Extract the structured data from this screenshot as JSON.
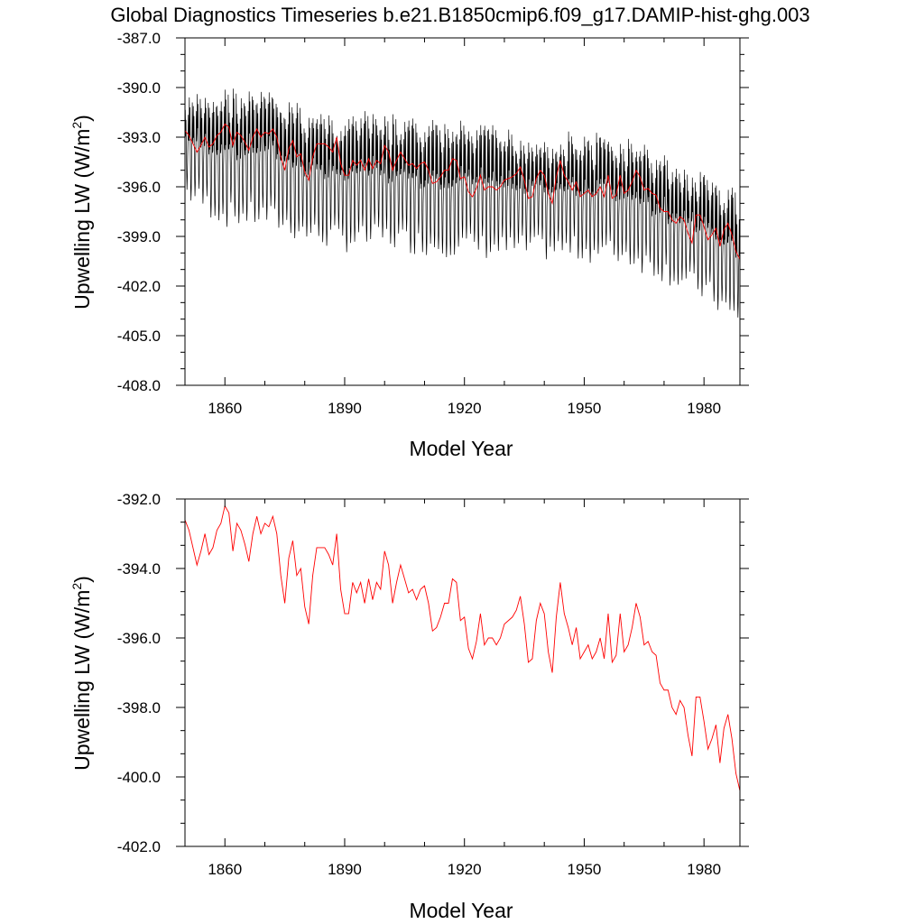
{
  "title": "Global Diagnostics Timeseries b.e21.B1850cmip6.f09_g17.DAMIP-hist-ghg.003",
  "colors": {
    "monthly_line": "#000000",
    "annual_line": "#ff0000",
    "axes": "#000000"
  },
  "chart_data": [
    {
      "type": "line",
      "xlabel": "Model Year",
      "ylabel": "Upwelling LW (W/m2)",
      "xlim": [
        1850,
        1989
      ],
      "ylim": [
        -408,
        -387
      ],
      "xticks": [
        1860,
        1890,
        1920,
        1950,
        1980
      ],
      "xtick_labels": [
        "1860",
        "1890",
        "1920",
        "1950",
        "1980"
      ],
      "yticks": [
        -387,
        -390,
        -393,
        -396,
        -399,
        -402,
        -405,
        -408
      ],
      "ytick_labels": [
        "-387.0",
        "-390.0",
        "-393.0",
        "-396.0",
        "-399.0",
        "-402.0",
        "-405.0",
        "-408.0"
      ],
      "grid": false,
      "series": [
        {
          "color": "#000000",
          "kind": "monthly_envelope",
          "x": [
            1850,
            1860,
            1870,
            1880,
            1890,
            1900,
            1910,
            1920,
            1930,
            1940,
            1950,
            1960,
            1970,
            1975,
            1980,
            1985,
            1989
          ],
          "max": [
            -390.5,
            -389.8,
            -390.0,
            -391.0,
            -391.3,
            -391.5,
            -391.8,
            -392.0,
            -392.3,
            -392.5,
            -392.6,
            -392.8,
            -393.8,
            -394.5,
            -395.0,
            -395.5,
            -396.0
          ],
          "min": [
            -397.0,
            -398.5,
            -398.5,
            -399.5,
            -400.0,
            -399.8,
            -400.2,
            -400.3,
            -400.5,
            -400.5,
            -400.6,
            -400.8,
            -401.8,
            -402.5,
            -403.0,
            -404.0,
            -405.0
          ]
        },
        {
          "color": "#ff0000",
          "kind": "annual",
          "x": [
            1850,
            1851,
            1852,
            1853,
            1854,
            1855,
            1856,
            1857,
            1858,
            1859,
            1860,
            1861,
            1862,
            1863,
            1864,
            1865,
            1866,
            1867,
            1868,
            1869,
            1870,
            1871,
            1872,
            1873,
            1874,
            1875,
            1876,
            1877,
            1878,
            1879,
            1880,
            1881,
            1882,
            1883,
            1884,
            1885,
            1886,
            1887,
            1888,
            1889,
            1890,
            1891,
            1892,
            1893,
            1894,
            1895,
            1896,
            1897,
            1898,
            1899,
            1900,
            1901,
            1902,
            1903,
            1904,
            1905,
            1906,
            1907,
            1908,
            1909,
            1910,
            1911,
            1912,
            1913,
            1914,
            1915,
            1916,
            1917,
            1918,
            1919,
            1920,
            1921,
            1922,
            1923,
            1924,
            1925,
            1926,
            1927,
            1928,
            1929,
            1930,
            1931,
            1932,
            1933,
            1934,
            1935,
            1936,
            1937,
            1938,
            1939,
            1940,
            1941,
            1942,
            1943,
            1944,
            1945,
            1946,
            1947,
            1948,
            1949,
            1950,
            1951,
            1952,
            1953,
            1954,
            1955,
            1956,
            1957,
            1958,
            1959,
            1960,
            1961,
            1962,
            1963,
            1964,
            1965,
            1966,
            1967,
            1968,
            1969,
            1970,
            1971,
            1972,
            1973,
            1974,
            1975,
            1976,
            1977,
            1978,
            1979,
            1980,
            1981,
            1982,
            1983,
            1984,
            1985,
            1986,
            1987,
            1988,
            1989
          ],
          "y": [
            -392.6,
            -392.9,
            -393.4,
            -393.9,
            -393.5,
            -393.0,
            -393.6,
            -393.4,
            -392.9,
            -392.7,
            -392.2,
            -392.4,
            -393.5,
            -392.7,
            -392.9,
            -393.3,
            -393.8,
            -393.0,
            -392.5,
            -393.0,
            -392.7,
            -392.8,
            -392.5,
            -393.0,
            -394.2,
            -395.0,
            -393.7,
            -393.2,
            -394.2,
            -394.0,
            -395.1,
            -395.6,
            -394.2,
            -393.4,
            -393.4,
            -393.4,
            -393.6,
            -393.9,
            -393.0,
            -394.6,
            -395.3,
            -395.3,
            -394.4,
            -394.7,
            -394.4,
            -395.0,
            -394.3,
            -394.9,
            -394.4,
            -394.6,
            -393.5,
            -393.9,
            -395.0,
            -394.4,
            -393.9,
            -394.3,
            -394.7,
            -394.6,
            -394.9,
            -394.6,
            -394.5,
            -395.0,
            -395.8,
            -395.7,
            -395.4,
            -395.0,
            -395.0,
            -394.3,
            -394.4,
            -395.5,
            -395.4,
            -396.3,
            -396.6,
            -396.1,
            -395.3,
            -396.2,
            -396.0,
            -396.0,
            -396.2,
            -396.0,
            -395.6,
            -395.5,
            -395.4,
            -395.2,
            -394.8,
            -395.6,
            -396.7,
            -396.6,
            -395.5,
            -395.0,
            -395.3,
            -396.4,
            -397.0,
            -395.4,
            -394.4,
            -395.3,
            -395.7,
            -396.2,
            -395.7,
            -396.6,
            -396.4,
            -396.2,
            -396.6,
            -396.4,
            -396.0,
            -396.6,
            -395.3,
            -396.7,
            -396.5,
            -395.3,
            -396.4,
            -396.2,
            -395.7,
            -395.0,
            -395.4,
            -396.2,
            -396.1,
            -396.4,
            -396.5,
            -397.3,
            -397.5,
            -397.5,
            -398.0,
            -398.2,
            -397.8,
            -398.0,
            -398.8,
            -399.4,
            -397.7,
            -397.7,
            -398.4,
            -399.2,
            -398.9,
            -398.5,
            -399.6,
            -398.6,
            -398.2,
            -398.9,
            -399.9,
            -400.4
          ]
        }
      ]
    },
    {
      "type": "line",
      "xlabel": "Model Year",
      "ylabel": "Upwelling LW (W/m2)",
      "xlim": [
        1850,
        1989
      ],
      "ylim": [
        -402,
        -392
      ],
      "xticks": [
        1860,
        1890,
        1920,
        1950,
        1980
      ],
      "xtick_labels": [
        "1860",
        "1890",
        "1920",
        "1950",
        "1980"
      ],
      "yticks": [
        -392,
        -394,
        -396,
        -398,
        -400,
        -402
      ],
      "ytick_labels": [
        "-392.0",
        "-394.0",
        "-396.0",
        "-398.0",
        "-400.0",
        "-402.0"
      ],
      "grid": false,
      "series": [
        {
          "color": "#ff0000",
          "kind": "annual",
          "same_as": "chart_data.0.series.1"
        }
      ]
    }
  ]
}
